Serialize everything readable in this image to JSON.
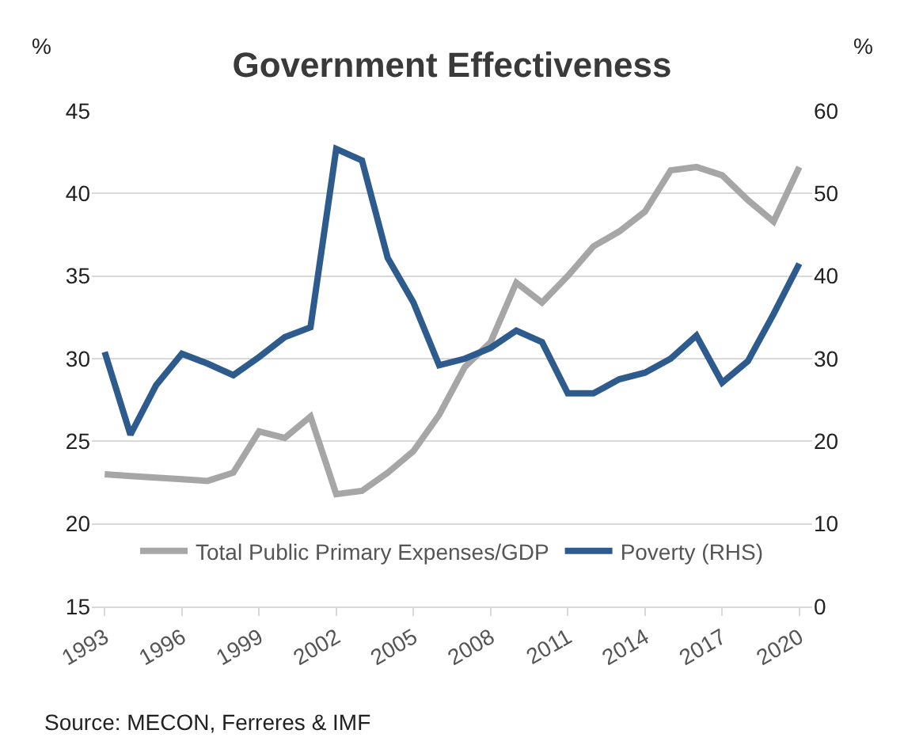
{
  "chart_data": {
    "type": "line",
    "title": "Government Effectiveness",
    "ylabel": "%",
    "y2label": "%",
    "x": [
      1993,
      1994,
      1995,
      1996,
      1997,
      1998,
      1999,
      2000,
      2001,
      2002,
      2003,
      2004,
      2005,
      2006,
      2007,
      2008,
      2009,
      2010,
      2011,
      2012,
      2013,
      2014,
      2015,
      2016,
      2017,
      2018,
      2019,
      2020
    ],
    "series": [
      {
        "name": "Total Public Primary Expenses/GDP",
        "color": "#a6a6a6",
        "values": [
          23.0,
          22.9,
          22.8,
          22.7,
          22.6,
          23.1,
          25.6,
          25.2,
          26.5,
          21.8,
          22.0,
          23.1,
          24.4,
          26.6,
          29.5,
          31.0,
          34.6,
          33.4,
          35.0,
          36.8,
          37.7,
          38.9,
          41.4,
          41.6,
          41.1,
          39.6,
          38.3,
          41.6
        ]
      },
      {
        "name": "Poverty (RHS)",
        "color": "#2e5b8e",
        "axis": "y2",
        "values": [
          30.8,
          20.8,
          26.8,
          30.6,
          29.4,
          28.0,
          30.2,
          32.6,
          33.8,
          55.4,
          54.0,
          42.2,
          36.8,
          29.2,
          30.0,
          31.3,
          33.4,
          32.0,
          25.8,
          25.8,
          27.5,
          28.3,
          30.0,
          32.8,
          27.1,
          29.7,
          35.4,
          41.5
        ]
      }
    ],
    "xlim": [
      1992.5,
      2020.5
    ],
    "xticks": [
      1993,
      1996,
      1999,
      2002,
      2005,
      2008,
      2011,
      2014,
      2017,
      2020
    ],
    "ylim": [
      15,
      45
    ],
    "yticks": [
      15,
      20,
      25,
      30,
      35,
      40,
      45
    ],
    "y2lim": [
      0,
      60
    ],
    "y2ticks": [
      0,
      10,
      20,
      30,
      40,
      50,
      60
    ],
    "grid": "y",
    "legend": "bottom",
    "marker": "none",
    "line_style": "solid",
    "annotations": [
      "Source: MECON, Ferreres & IMF"
    ]
  }
}
